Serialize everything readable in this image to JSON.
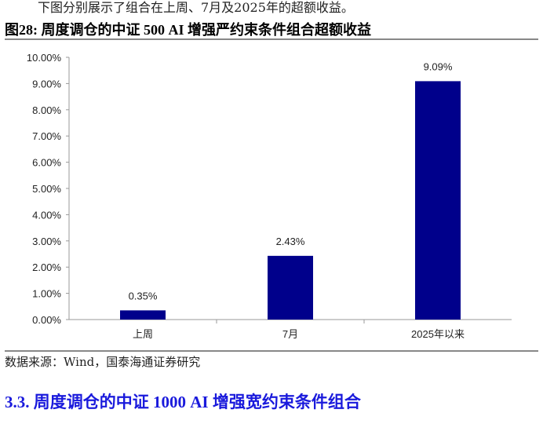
{
  "intro_text": "下图分别展示了组合在上周、7月及2025年的超额收益。",
  "figure_title": "图28:  周度调仓的中证 500 AI 增强严约束条件组合超额收益",
  "source": "数据来源：Wind，国泰海通证券研究",
  "section_heading": "3.3.   周度调仓的中证 1000 AI 增强宽约束条件组合",
  "chart_data": {
    "type": "bar",
    "categories": [
      "上周",
      "7月",
      "2025年以来"
    ],
    "values": [
      0.35,
      2.43,
      9.09
    ],
    "data_labels": [
      "0.35%",
      "2.43%",
      "9.09%"
    ],
    "ylim": [
      0,
      10
    ],
    "yticks": [
      "0.00%",
      "1.00%",
      "2.00%",
      "3.00%",
      "4.00%",
      "5.00%",
      "6.00%",
      "7.00%",
      "8.00%",
      "9.00%",
      "10.00%"
    ],
    "grid": false,
    "bar_color": "#00008b"
  }
}
